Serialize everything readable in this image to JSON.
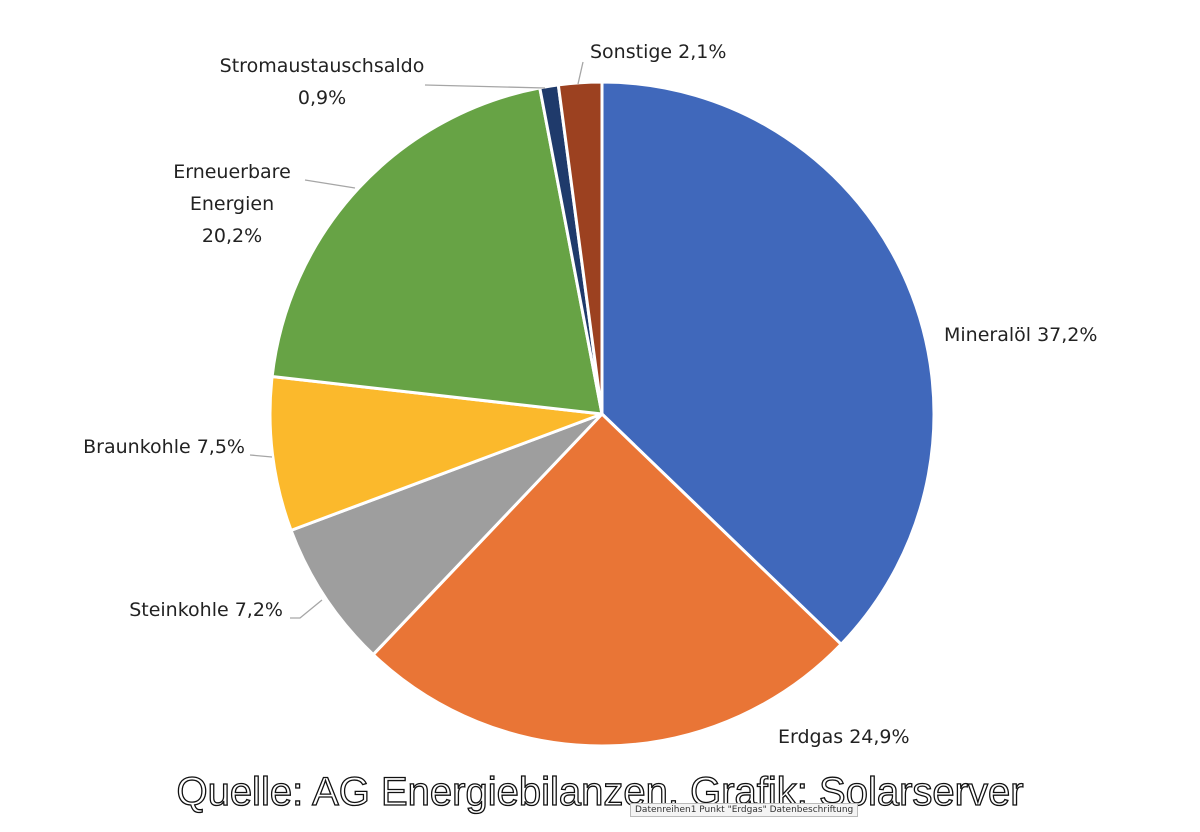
{
  "chart_data": {
    "type": "pie",
    "categories": [
      "Mineralöl",
      "Erdgas",
      "Steinkohle",
      "Braunkohle",
      "Erneuerbare Energien",
      "Stromaustauschsaldo",
      "Sonstige"
    ],
    "values": [
      37.2,
      24.9,
      7.2,
      7.5,
      20.2,
      0.9,
      2.1
    ],
    "value_labels": [
      "37,2%",
      "24,9%",
      "7,2%",
      "7,5%",
      "20,2%",
      "0,9%",
      "2,1%"
    ],
    "colors": [
      "#4068bb",
      "#e97536",
      "#9e9e9e",
      "#fbb92c",
      "#67a345",
      "#1f3a6b",
      "#9c4120"
    ],
    "source": "Quelle: AG Energiebilanzen, Grafik: Solarserver",
    "tooltip": "Datenreihen1 Punkt \"Erdgas\" Datenbeschriftung"
  }
}
